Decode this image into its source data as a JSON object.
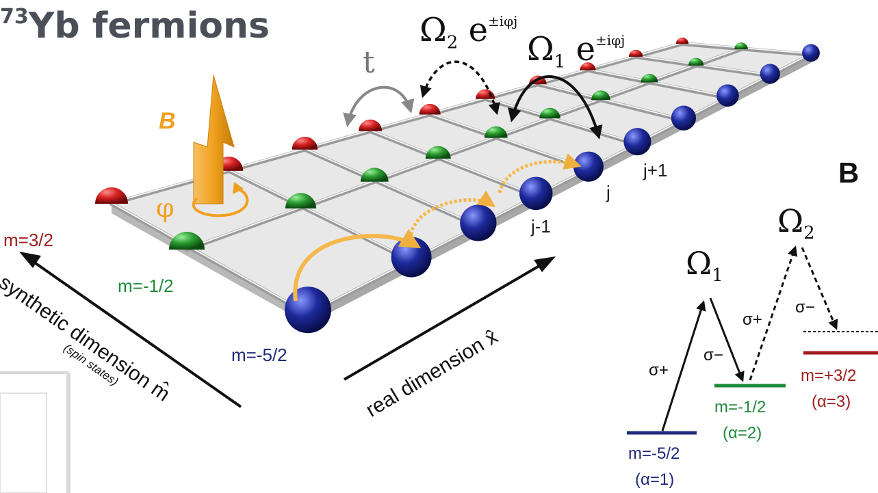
{
  "title": {
    "prefix": "73",
    "main": "Yb fermions"
  },
  "couplings": {
    "t": "t",
    "omega2": {
      "symbol": "Ω",
      "sub": "2",
      "e": " e",
      "exp": "±iφj"
    },
    "omega1": {
      "symbol": "Ω",
      "sub": "1",
      "e": " e",
      "exp": "±iφj"
    }
  },
  "field": {
    "label": "B",
    "phase": "φ",
    "arrow_color": "#f2a128"
  },
  "spin_labels": {
    "m32": "m=3/2",
    "mm12": "m=-1/2",
    "mm52": "m=-5/2"
  },
  "site_labels": {
    "jp1": "j+1",
    "j": "j",
    "jm1": "j-1"
  },
  "axes": {
    "synthetic": "synthetic dimension m̂",
    "synthetic_sub": "(spin states)",
    "real": "real dimension x̂"
  },
  "panel_letter": "B",
  "level_diagram": {
    "omega1": {
      "symbol": "Ω",
      "sub": "1"
    },
    "omega2": {
      "symbol": "Ω",
      "sub": "2"
    },
    "sigma_plus": "σ+",
    "sigma_minus": "σ−",
    "levels": [
      {
        "m": "m=-5/2",
        "alpha": "(α=1)",
        "color": "#1f2a7a"
      },
      {
        "m": "m=-1/2",
        "alpha": "(α=2)",
        "color": "#1e8a3a"
      },
      {
        "m": "m=+3/2",
        "alpha": "(α=3)",
        "color": "#a01c1c"
      }
    ]
  },
  "colors": {
    "red": "#d42020",
    "green": "#2a9a30",
    "blue": "#1e2a9c",
    "orange": "#f0a020"
  }
}
